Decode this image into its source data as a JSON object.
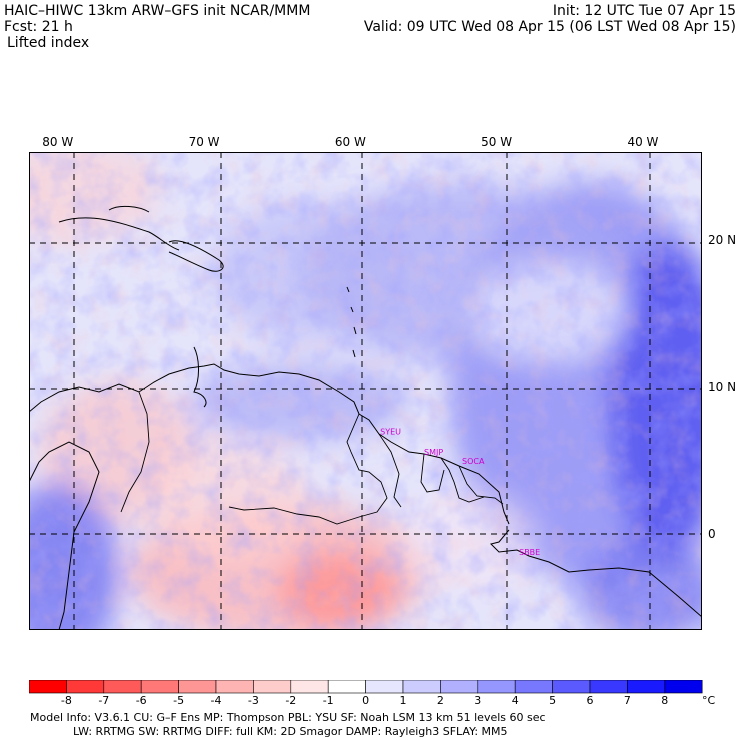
{
  "header": {
    "title": "HAIC–HIWC 13km ARW–GFS init   NCAR/MMM",
    "init": "Init: 12 UTC Tue 07 Apr 15",
    "forecast": "Fcst:    21 h",
    "valid": "Valid: 09 UTC Wed 08 Apr 15 (06 LST Wed 08 Apr 15)",
    "field": "Lifted index"
  },
  "map": {
    "lon_labels": [
      "80 W",
      "70 W",
      "60 W",
      "50 W",
      "40 W"
    ],
    "lat_labels": [
      "20 N",
      "10 N",
      "0"
    ],
    "lon_values": [
      -80,
      -70,
      -60,
      -50,
      -40
    ],
    "lat_values": [
      20,
      10,
      0
    ],
    "lon_range": [
      -82,
      -36
    ],
    "lat_range": [
      -6.5,
      26
    ],
    "stations": [
      {
        "label": "SYEU",
        "lon": -58,
        "lat": 6.8
      },
      {
        "label": "SMJP",
        "lon": -55,
        "lat": 5.4
      },
      {
        "label": "SOCA",
        "lon": -52.4,
        "lat": 4.8
      },
      {
        "label": "SBBE",
        "lon": -48.5,
        "lat": -1.4
      }
    ],
    "colors": {
      "land_outline": "#000000",
      "grid": "#000000",
      "station_label": "#cc00cc"
    }
  },
  "colorbar": {
    "unit": "°C",
    "labels": [
      "-8",
      "-7",
      "-6",
      "-5",
      "-4",
      "-3",
      "-2",
      "-1",
      "0",
      "1",
      "2",
      "3",
      "4",
      "5",
      "6",
      "7",
      "8"
    ],
    "colors": [
      "#ff0000",
      "#ff3838",
      "#ff5a5a",
      "#ff7878",
      "#ff9696",
      "#ffb4b4",
      "#ffcccc",
      "#ffe6e6",
      "#ffffff",
      "#e6e6ff",
      "#ccccff",
      "#b0b0ff",
      "#9696ff",
      "#7878ff",
      "#5a5aff",
      "#3838ff",
      "#1a1aff",
      "#0000ee"
    ]
  },
  "footer": {
    "line1": "Model Info: V3.6.1     CU: G–F Ens  MP: Thompson      PBL: YSU        SF: Noah LSM      13 km     51 levels     60 sec",
    "line2": "LW: RRTMG     SW: RRTMG   DIFF: full     KM: 2D Smagor  DAMP: Rayleigh3   SFLAY: MM5"
  }
}
